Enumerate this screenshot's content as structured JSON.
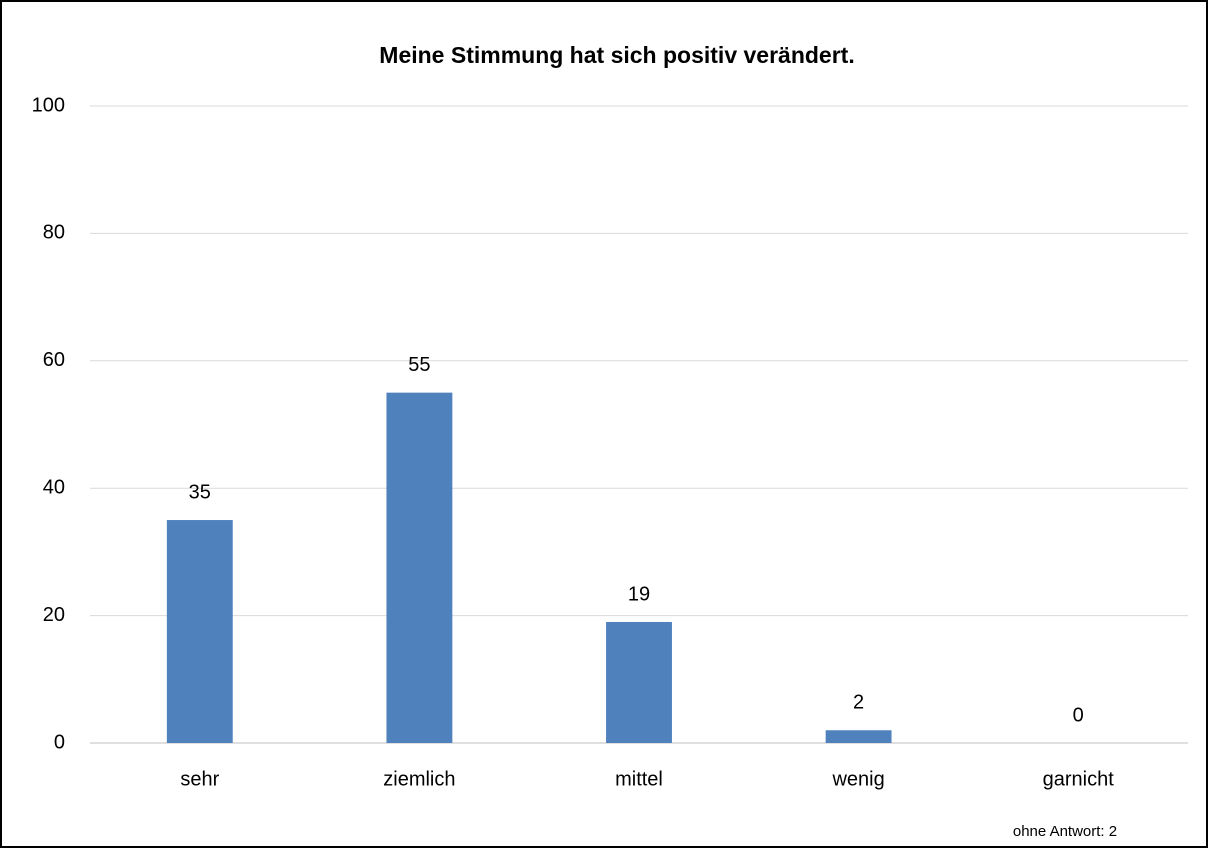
{
  "chart_data": {
    "type": "bar",
    "title": "Meine Stimmung hat sich positiv verändert.",
    "categories": [
      "sehr",
      "ziemlich",
      "mittel",
      "wenig",
      "garnicht"
    ],
    "values": [
      35,
      55,
      19,
      2,
      0
    ],
    "color": "#4f81bd",
    "ylim": [
      0,
      100
    ],
    "yticks": [
      0,
      20,
      40,
      60,
      80,
      100
    ],
    "grid": true,
    "annotation": "ohne Antwort: 2"
  }
}
